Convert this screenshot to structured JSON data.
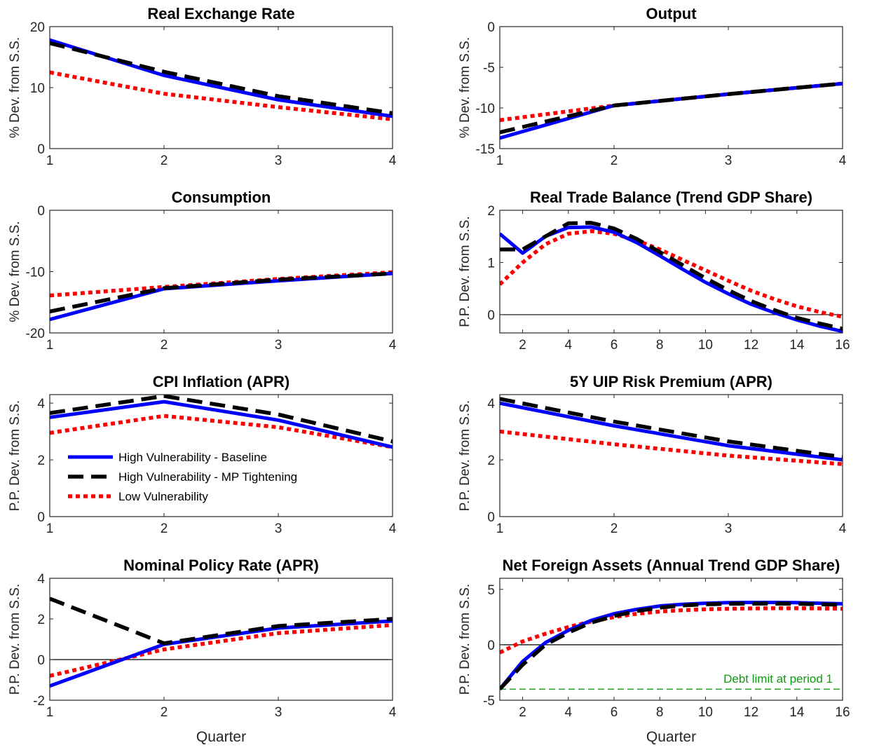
{
  "colors": {
    "baseline": "#0000ff",
    "tightening": "#000000",
    "low": "#ff0000",
    "zero_line": "#000000",
    "debt_limit": "#119911"
  },
  "legend": {
    "entries": [
      {
        "label": "High Vulnerability - Baseline",
        "series": "baseline"
      },
      {
        "label": "High Vulnerability - MP Tightening",
        "series": "tightening"
      },
      {
        "label": "Low Vulnerability",
        "series": "low"
      }
    ],
    "location": "lower-left of CPI Inflation panel"
  },
  "chart_data": [
    {
      "id": "rer",
      "type": "line",
      "title": "Real Exchange Rate",
      "ylabel": "% Dev. from S.S.",
      "xlabel": "",
      "xlim": [
        1,
        4
      ],
      "ylim": [
        0,
        20
      ],
      "xticks": [
        1,
        2,
        3,
        4
      ],
      "yticks": [
        0,
        10,
        20
      ],
      "zero_line": false,
      "x": [
        1,
        2,
        3,
        4
      ],
      "series": [
        {
          "key": "baseline",
          "values": [
            17.8,
            12.0,
            8.0,
            5.3
          ]
        },
        {
          "key": "tightening",
          "values": [
            17.3,
            12.6,
            8.6,
            5.8
          ]
        },
        {
          "key": "low",
          "values": [
            12.5,
            9.0,
            6.8,
            4.8
          ]
        }
      ]
    },
    {
      "id": "output",
      "type": "line",
      "title": "Output",
      "ylabel": "% Dev. from S.S.",
      "xlabel": "",
      "xlim": [
        1,
        4
      ],
      "ylim": [
        -15,
        0
      ],
      "xticks": [
        1,
        2,
        3,
        4
      ],
      "yticks": [
        -15,
        -10,
        -5,
        0
      ],
      "zero_line": false,
      "x": [
        1,
        2,
        3,
        4
      ],
      "series": [
        {
          "key": "baseline",
          "values": [
            -13.7,
            -9.7,
            -8.3,
            -7.0
          ]
        },
        {
          "key": "tightening",
          "values": [
            -13.0,
            -9.7,
            -8.3,
            -7.0
          ]
        },
        {
          "key": "low",
          "values": [
            -11.5,
            -9.7,
            -8.3,
            -7.0
          ]
        }
      ]
    },
    {
      "id": "consumption",
      "type": "line",
      "title": "Consumption",
      "ylabel": "% Dev. from S.S.",
      "xlabel": "",
      "xlim": [
        1,
        4
      ],
      "ylim": [
        -20,
        0
      ],
      "xticks": [
        1,
        2,
        3,
        4
      ],
      "yticks": [
        -20,
        -10,
        0
      ],
      "zero_line": false,
      "x": [
        1,
        2,
        3,
        4
      ],
      "series": [
        {
          "key": "baseline",
          "values": [
            -17.8,
            -12.8,
            -11.5,
            -10.3
          ]
        },
        {
          "key": "tightening",
          "values": [
            -16.5,
            -12.7,
            -11.3,
            -10.3
          ]
        },
        {
          "key": "low",
          "values": [
            -13.9,
            -12.5,
            -11.2,
            -10.1
          ]
        }
      ]
    },
    {
      "id": "tb",
      "type": "line",
      "title": "Real Trade Balance (Trend GDP Share)",
      "ylabel": "P.P. Dev. from S.S.",
      "xlabel": "",
      "xlim": [
        1,
        16
      ],
      "ylim": [
        -0.35,
        2
      ],
      "xticks": [
        2,
        4,
        6,
        8,
        10,
        12,
        14,
        16
      ],
      "yticks": [
        0,
        1,
        2
      ],
      "zero_line": true,
      "x": [
        1,
        2,
        3,
        4,
        5,
        6,
        7,
        8,
        9,
        10,
        11,
        12,
        13,
        14,
        15,
        16
      ],
      "series": [
        {
          "key": "baseline",
          "values": [
            1.55,
            1.18,
            1.5,
            1.67,
            1.68,
            1.58,
            1.38,
            1.13,
            0.87,
            0.62,
            0.4,
            0.2,
            0.04,
            -0.1,
            -0.22,
            -0.32
          ]
        },
        {
          "key": "tightening",
          "values": [
            1.25,
            1.25,
            1.5,
            1.75,
            1.76,
            1.65,
            1.45,
            1.2,
            0.95,
            0.7,
            0.47,
            0.26,
            0.09,
            -0.06,
            -0.17,
            -0.27
          ]
        },
        {
          "key": "low",
          "values": [
            0.58,
            1.0,
            1.35,
            1.55,
            1.6,
            1.55,
            1.42,
            1.25,
            1.05,
            0.85,
            0.65,
            0.46,
            0.3,
            0.16,
            0.05,
            -0.04
          ]
        }
      ]
    },
    {
      "id": "cpi",
      "type": "line",
      "title": "CPI Inflation (APR)",
      "ylabel": "P.P. Dev. from S.S.",
      "xlabel": "",
      "xlim": [
        1,
        4
      ],
      "ylim": [
        0,
        4.3
      ],
      "xticks": [
        1,
        2,
        3,
        4
      ],
      "yticks": [
        0,
        2,
        4
      ],
      "zero_line": false,
      "x": [
        1,
        2,
        3,
        4
      ],
      "series": [
        {
          "key": "baseline",
          "values": [
            3.5,
            4.05,
            3.4,
            2.45
          ]
        },
        {
          "key": "tightening",
          "values": [
            3.65,
            4.25,
            3.6,
            2.65
          ]
        },
        {
          "key": "low",
          "values": [
            2.95,
            3.55,
            3.15,
            2.45
          ]
        }
      ]
    },
    {
      "id": "uip",
      "type": "line",
      "title": "5Y UIP Risk Premium (APR)",
      "ylabel": "P.P. Dev. from S.S.",
      "xlabel": "",
      "xlim": [
        1,
        4
      ],
      "ylim": [
        0,
        4.3
      ],
      "xticks": [
        1,
        2,
        3,
        4
      ],
      "yticks": [
        0,
        2,
        4
      ],
      "zero_line": false,
      "x": [
        1,
        2,
        3,
        4
      ],
      "series": [
        {
          "key": "baseline",
          "values": [
            4.0,
            3.2,
            2.5,
            2.0
          ]
        },
        {
          "key": "tightening",
          "values": [
            4.15,
            3.35,
            2.65,
            2.1
          ]
        },
        {
          "key": "low",
          "values": [
            3.0,
            2.55,
            2.15,
            1.85
          ]
        }
      ]
    },
    {
      "id": "policy",
      "type": "line",
      "title": "Nominal Policy Rate (APR)",
      "ylabel": "P.P. Dev. from S.S.",
      "xlabel": "Quarter",
      "xlim": [
        1,
        4
      ],
      "ylim": [
        -2,
        4
      ],
      "xticks": [
        1,
        2,
        3,
        4
      ],
      "yticks": [
        -2,
        0,
        2,
        4
      ],
      "zero_line": true,
      "x": [
        1,
        2,
        3,
        4
      ],
      "series": [
        {
          "key": "baseline",
          "values": [
            -1.3,
            0.75,
            1.55,
            1.9
          ]
        },
        {
          "key": "tightening",
          "values": [
            3.0,
            0.8,
            1.65,
            2.0
          ]
        },
        {
          "key": "low",
          "values": [
            -0.8,
            0.5,
            1.3,
            1.7
          ]
        }
      ]
    },
    {
      "id": "nfa",
      "type": "line",
      "title": "Net Foreign Assets (Annual Trend GDP Share)",
      "ylabel": "P.P. Dev. from S.S.",
      "xlabel": "Quarter",
      "xlim": [
        1,
        16
      ],
      "ylim": [
        -5,
        6
      ],
      "xticks": [
        2,
        4,
        6,
        8,
        10,
        12,
        14,
        16
      ],
      "yticks": [
        -5,
        0,
        5
      ],
      "zero_line": true,
      "x": [
        1,
        2,
        3,
        4,
        5,
        6,
        7,
        8,
        9,
        10,
        11,
        12,
        13,
        14,
        15,
        16
      ],
      "series": [
        {
          "key": "baseline",
          "values": [
            -4.0,
            -1.5,
            0.2,
            1.3,
            2.2,
            2.8,
            3.2,
            3.5,
            3.65,
            3.75,
            3.8,
            3.82,
            3.82,
            3.8,
            3.75,
            3.7
          ]
        },
        {
          "key": "tightening",
          "values": [
            -4.0,
            -1.8,
            0.0,
            1.1,
            2.0,
            2.6,
            3.05,
            3.35,
            3.55,
            3.65,
            3.7,
            3.72,
            3.72,
            3.7,
            3.65,
            3.6
          ]
        },
        {
          "key": "low",
          "values": [
            -0.7,
            0.3,
            1.0,
            1.6,
            2.1,
            2.5,
            2.8,
            3.0,
            3.12,
            3.2,
            3.25,
            3.28,
            3.3,
            3.3,
            3.28,
            3.25
          ]
        }
      ],
      "hline": {
        "y": -4.0,
        "label": "Debt limit at period 1"
      }
    }
  ]
}
